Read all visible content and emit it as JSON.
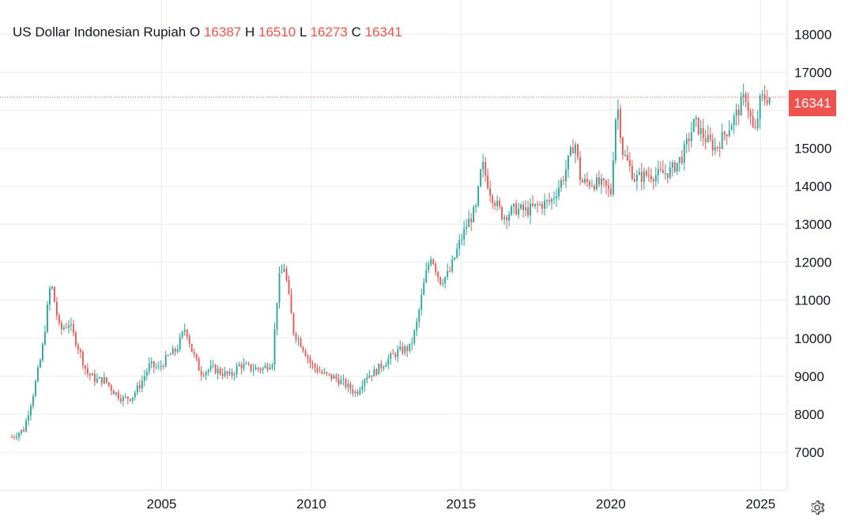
{
  "legend": {
    "symbol": "US Dollar Indonesian Rupiah",
    "o_label": "O",
    "o_value": "16387",
    "h_label": "H",
    "h_value": "16510",
    "l_label": "L",
    "l_value": "16273",
    "c_label": "C",
    "c_value": "16341"
  },
  "last_price_tag": "16341",
  "colors": {
    "up": "#26a69a",
    "down": "#ef5350",
    "grid": "#e9ecf1",
    "text": "#131722"
  },
  "icons": {
    "settings": "gear-icon"
  },
  "chart_data": {
    "type": "candlestick",
    "title": "US Dollar Indonesian Rupiah",
    "y_ticks": [
      "7000",
      "8000",
      "9000",
      "10000",
      "11000",
      "12000",
      "13000",
      "14000",
      "15000",
      "16000",
      "17000",
      "18000"
    ],
    "x_ticks": [
      "2005",
      "2010",
      "2015",
      "2020",
      "2025"
    ],
    "ylim": [
      6000,
      18900
    ],
    "xlim": [
      2000.0,
      2025.6
    ],
    "last_close": 16341,
    "grid": true,
    "series_close_path": [
      [
        2000.0,
        7400
      ],
      [
        2000.4,
        7600
      ],
      [
        2000.7,
        8500
      ],
      [
        2001.0,
        9600
      ],
      [
        2001.3,
        11500
      ],
      [
        2001.6,
        10200
      ],
      [
        2001.9,
        10400
      ],
      [
        2002.2,
        9800
      ],
      [
        2002.5,
        9100
      ],
      [
        2002.8,
        8900
      ],
      [
        2003.1,
        8900
      ],
      [
        2003.4,
        8600
      ],
      [
        2003.7,
        8400
      ],
      [
        2004.0,
        8450
      ],
      [
        2004.3,
        8800
      ],
      [
        2004.6,
        9300
      ],
      [
        2004.9,
        9200
      ],
      [
        2005.2,
        9500
      ],
      [
        2005.5,
        9700
      ],
      [
        2005.8,
        10300
      ],
      [
        2006.0,
        9700
      ],
      [
        2006.3,
        9100
      ],
      [
        2006.7,
        9200
      ],
      [
        2007.0,
        9100
      ],
      [
        2007.3,
        9000
      ],
      [
        2007.6,
        9300
      ],
      [
        2008.0,
        9200
      ],
      [
        2008.4,
        9200
      ],
      [
        2008.7,
        9400
      ],
      [
        2008.9,
        11500
      ],
      [
        2009.1,
        11900
      ],
      [
        2009.4,
        10200
      ],
      [
        2009.7,
        9800
      ],
      [
        2010.0,
        9300
      ],
      [
        2010.4,
        9050
      ],
      [
        2010.8,
        8950
      ],
      [
        2011.1,
        8800
      ],
      [
        2011.5,
        8550
      ],
      [
        2011.8,
        9000
      ],
      [
        2012.1,
        9100
      ],
      [
        2012.5,
        9400
      ],
      [
        2012.9,
        9650
      ],
      [
        2013.3,
        9750
      ],
      [
        2013.5,
        10300
      ],
      [
        2013.8,
        11600
      ],
      [
        2014.0,
        12200
      ],
      [
        2014.3,
        11500
      ],
      [
        2014.6,
        11700
      ],
      [
        2014.9,
        12400
      ],
      [
        2015.2,
        13000
      ],
      [
        2015.5,
        13400
      ],
      [
        2015.7,
        14600
      ],
      [
        2016.0,
        13800
      ],
      [
        2016.4,
        13200
      ],
      [
        2016.8,
        13400
      ],
      [
        2017.2,
        13350
      ],
      [
        2017.6,
        13500
      ],
      [
        2018.0,
        13600
      ],
      [
        2018.4,
        14200
      ],
      [
        2018.8,
        15200
      ],
      [
        2019.0,
        14100
      ],
      [
        2019.4,
        14100
      ],
      [
        2019.8,
        14000
      ],
      [
        2020.0,
        13800
      ],
      [
        2020.2,
        16300
      ],
      [
        2020.4,
        14900
      ],
      [
        2020.8,
        14200
      ],
      [
        2021.2,
        14300
      ],
      [
        2021.6,
        14300
      ],
      [
        2022.0,
        14400
      ],
      [
        2022.4,
        14800
      ],
      [
        2022.8,
        15700
      ],
      [
        2023.1,
        15300
      ],
      [
        2023.5,
        15000
      ],
      [
        2023.9,
        15500
      ],
      [
        2024.2,
        15900
      ],
      [
        2024.5,
        16400
      ],
      [
        2024.8,
        15300
      ],
      [
        2025.0,
        16300
      ],
      [
        2025.3,
        16341
      ]
    ]
  }
}
